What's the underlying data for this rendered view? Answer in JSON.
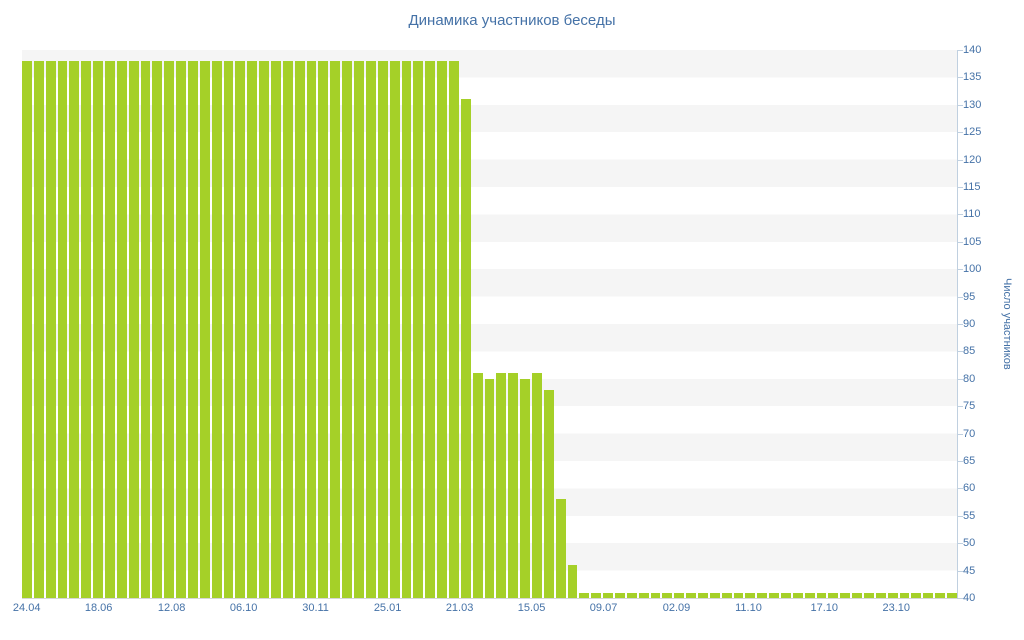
{
  "chart_data": {
    "type": "bar",
    "title": "Динамика участников беседы",
    "xlabel": "",
    "ylabel": "Число участников",
    "ylim": [
      40,
      140
    ],
    "y_tick_step": 5,
    "y_ticks": [
      140,
      135,
      130,
      125,
      120,
      115,
      110,
      105,
      100,
      95,
      90,
      85,
      80,
      75,
      70,
      65,
      60,
      55,
      50,
      45,
      40
    ],
    "x_tick_labels": [
      {
        "label": "24.04",
        "pos": 0.5
      },
      {
        "label": "18.06",
        "pos": 8.2
      },
      {
        "label": "12.08",
        "pos": 16.0
      },
      {
        "label": "06.10",
        "pos": 23.7
      },
      {
        "label": "30.11",
        "pos": 31.4
      },
      {
        "label": "25.01",
        "pos": 39.1
      },
      {
        "label": "21.03",
        "pos": 46.8
      },
      {
        "label": "15.05",
        "pos": 54.5
      },
      {
        "label": "09.07",
        "pos": 62.2
      },
      {
        "label": "02.09",
        "pos": 70.0
      },
      {
        "label": "11.10",
        "pos": 77.7
      },
      {
        "label": "17.10",
        "pos": 85.8
      },
      {
        "label": "23.10",
        "pos": 93.5
      }
    ],
    "values": [
      138,
      138,
      138,
      138,
      138,
      138,
      138,
      138,
      138,
      138,
      138,
      138,
      138,
      138,
      138,
      138,
      138,
      138,
      138,
      138,
      138,
      138,
      138,
      138,
      138,
      138,
      138,
      138,
      138,
      138,
      138,
      138,
      138,
      138,
      138,
      138,
      138,
      131,
      81,
      80,
      81,
      81,
      80,
      81,
      78,
      58,
      46,
      41,
      41,
      41,
      41,
      41,
      41,
      41,
      41,
      41,
      41,
      41,
      41,
      41,
      41,
      41,
      41,
      41,
      41,
      41,
      41,
      41,
      41,
      41,
      41,
      41,
      41,
      41,
      41,
      41,
      41,
      41,
      41
    ],
    "bar_color": "#a5d028",
    "band_color": "#f5f5f5",
    "band_alt_color": "#ffffff",
    "axis_line_color": "#c0d0e0",
    "label_color": "#4572a7",
    "legend": "none",
    "grid": "alternating horizontal bands every 5 units"
  }
}
